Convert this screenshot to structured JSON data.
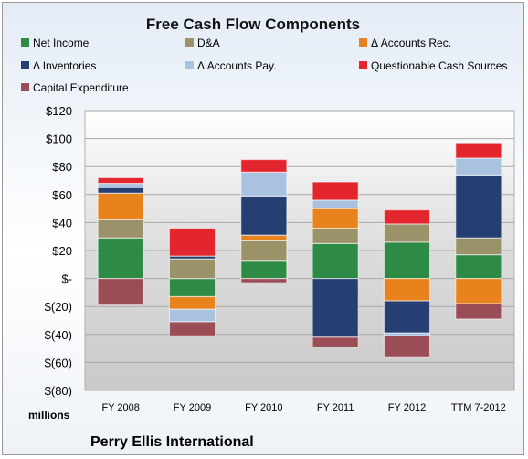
{
  "chart_data": {
    "type": "bar",
    "stacked": true,
    "title": "Free Cash Flow Components",
    "categories": [
      "FY 2008",
      "FY 2009",
      "FY 2010",
      "FY 2011",
      "FY 2012",
      "TTM 7-2012"
    ],
    "series": [
      {
        "name": "Net Income",
        "color": "#2e8b45",
        "values": [
          29,
          -13,
          13,
          25,
          26,
          17
        ]
      },
      {
        "name": "D&A",
        "color": "#9c9269",
        "values": [
          13,
          14,
          14,
          11,
          13,
          12
        ]
      },
      {
        "name": "Δ Accounts Rec.",
        "color": "#e8821c",
        "values": [
          19,
          -9,
          4,
          14,
          -16,
          -18
        ]
      },
      {
        "name": "Δ Inventories",
        "color": "#263f73",
        "values": [
          4,
          2,
          28,
          -42,
          -23,
          45
        ]
      },
      {
        "name": "Δ Accounts Pay.",
        "color": "#a8c2e0",
        "values": [
          3,
          -9,
          17,
          6,
          -2,
          12
        ]
      },
      {
        "name": "Questionable Cash Sources",
        "color": "#e3262d",
        "values": [
          4,
          20,
          9,
          13,
          10,
          11
        ]
      },
      {
        "name": "Capital Expenditure",
        "color": "#9b4d55",
        "values": [
          -19,
          -10,
          -3,
          -7,
          -15,
          -11
        ]
      }
    ],
    "ylim": [
      -80,
      120
    ],
    "yticks": [
      120,
      100,
      80,
      60,
      40,
      20,
      0,
      -20,
      -40,
      -60,
      -80
    ],
    "ytick_labels": [
      "$120",
      "$100",
      "$80",
      "$60",
      "$40",
      "$20",
      "$-",
      "$(20)",
      "$(40)",
      "$(60)",
      "$(80)"
    ],
    "units_label": "millions",
    "grid": true,
    "legend_position": "top"
  },
  "company": "Perry Ellis International"
}
